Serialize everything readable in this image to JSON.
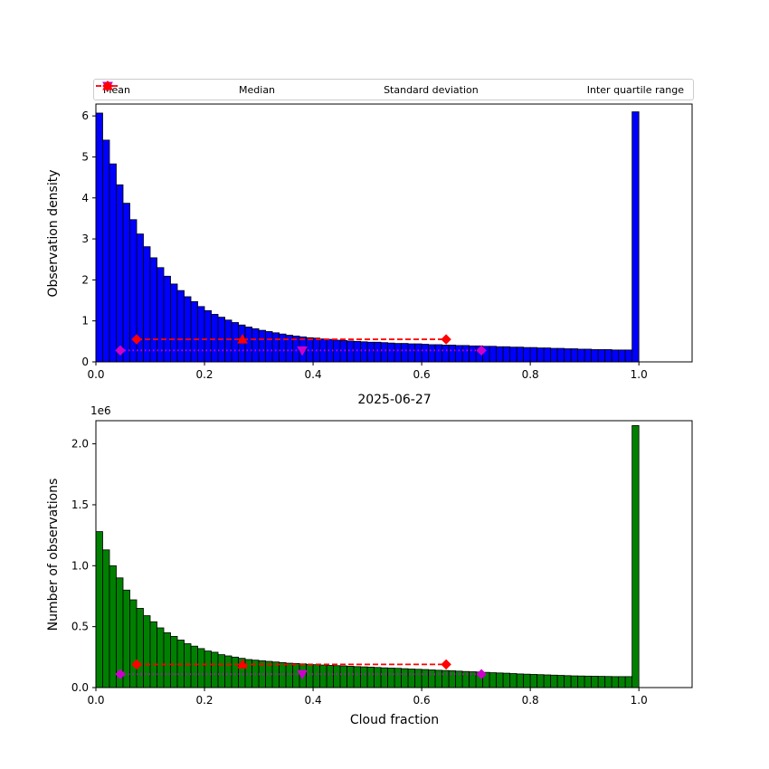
{
  "figure": {
    "title": "2025-06-27",
    "legend": [
      {
        "label": "Mean",
        "marker": "triangle-down",
        "color": "#cc00cc"
      },
      {
        "label": "Median",
        "marker": "triangle-up",
        "color": "#ff0000"
      },
      {
        "label": "Standard deviation",
        "marker": "diamond-dotted",
        "color": "#cc00cc"
      },
      {
        "label": "Inter quartile range",
        "marker": "diamond-dashed",
        "color": "#ff0000"
      }
    ]
  },
  "chart_data": [
    {
      "type": "bar",
      "name": "observation-density-histogram",
      "ylabel": "Observation density",
      "xlabel": "",
      "bar_color": "#0000ff",
      "edge_color": "#000000",
      "bin_start": 0.0,
      "bin_width": 0.0125,
      "xlim": [
        0.0,
        1.098
      ],
      "ylim": [
        0.0,
        6.29
      ],
      "xticks": [
        0.0,
        0.2,
        0.4,
        0.6,
        0.8,
        1.0
      ],
      "xtick_labels": [
        "0.0",
        "0.2",
        "0.4",
        "0.6",
        "0.8",
        "1.0"
      ],
      "yticks": [
        0,
        1,
        2,
        3,
        4,
        5,
        6
      ],
      "ytick_labels": [
        "0",
        "1",
        "2",
        "3",
        "4",
        "5",
        "6"
      ],
      "values": [
        6.07,
        5.41,
        4.83,
        4.32,
        3.87,
        3.47,
        3.12,
        2.81,
        2.54,
        2.3,
        2.09,
        1.9,
        1.74,
        1.59,
        1.47,
        1.35,
        1.25,
        1.16,
        1.09,
        1.02,
        0.96,
        0.9,
        0.85,
        0.81,
        0.77,
        0.74,
        0.71,
        0.68,
        0.65,
        0.63,
        0.61,
        0.59,
        0.58,
        0.56,
        0.55,
        0.53,
        0.52,
        0.51,
        0.5,
        0.49,
        0.48,
        0.48,
        0.47,
        0.46,
        0.45,
        0.45,
        0.44,
        0.44,
        0.43,
        0.42,
        0.42,
        0.41,
        0.41,
        0.4,
        0.4,
        0.39,
        0.39,
        0.38,
        0.38,
        0.37,
        0.37,
        0.36,
        0.36,
        0.35,
        0.35,
        0.34,
        0.34,
        0.33,
        0.33,
        0.32,
        0.32,
        0.31,
        0.31,
        0.3,
        0.3,
        0.3,
        0.29,
        0.29,
        0.29,
        6.1
      ],
      "stats": {
        "mean": 0.38,
        "median": 0.27,
        "std_low": 0.045,
        "std_high": 0.71,
        "iqr_low": 0.075,
        "iqr_high": 0.645,
        "mean_line_y": 0.28,
        "median_line_y": 0.55,
        "mean_color": "#cc00cc",
        "median_color": "#ff0000"
      }
    },
    {
      "type": "bar",
      "name": "number-of-observations-histogram",
      "ylabel": "Number of observations",
      "xlabel": "Cloud fraction",
      "offset_text": "1e6",
      "bar_color": "#008000",
      "edge_color": "#000000",
      "bin_start": 0.0,
      "bin_width": 0.0125,
      "xlim": [
        0.0,
        1.098
      ],
      "ylim": [
        0.0,
        2.19
      ],
      "xticks": [
        0.0,
        0.2,
        0.4,
        0.6,
        0.8,
        1.0
      ],
      "xtick_labels": [
        "0.0",
        "0.2",
        "0.4",
        "0.6",
        "0.8",
        "1.0"
      ],
      "yticks": [
        0.0,
        0.5,
        1.0,
        1.5,
        2.0
      ],
      "ytick_labels": [
        "0.0",
        "0.5",
        "1.0",
        "1.5",
        "2.0"
      ],
      "values_scale": "1e6",
      "values": [
        1.28,
        1.13,
        1.0,
        0.9,
        0.8,
        0.72,
        0.65,
        0.59,
        0.54,
        0.49,
        0.45,
        0.42,
        0.39,
        0.36,
        0.34,
        0.32,
        0.3,
        0.29,
        0.27,
        0.26,
        0.25,
        0.24,
        0.23,
        0.225,
        0.22,
        0.215,
        0.21,
        0.205,
        0.2,
        0.198,
        0.195,
        0.19,
        0.188,
        0.185,
        0.182,
        0.18,
        0.178,
        0.175,
        0.172,
        0.17,
        0.168,
        0.165,
        0.162,
        0.16,
        0.158,
        0.155,
        0.152,
        0.15,
        0.148,
        0.145,
        0.142,
        0.14,
        0.138,
        0.135,
        0.132,
        0.13,
        0.128,
        0.125,
        0.122,
        0.12,
        0.118,
        0.115,
        0.112,
        0.11,
        0.108,
        0.106,
        0.104,
        0.102,
        0.1,
        0.098,
        0.096,
        0.095,
        0.094,
        0.093,
        0.092,
        0.091,
        0.09,
        0.09,
        0.09,
        2.15
      ],
      "stats": {
        "mean": 0.38,
        "median": 0.27,
        "std_low": 0.045,
        "std_high": 0.71,
        "iqr_low": 0.075,
        "iqr_high": 0.645,
        "mean_line_y": 0.11,
        "median_line_y": 0.19,
        "mean_color": "#cc00cc",
        "median_color": "#ff0000"
      }
    }
  ]
}
